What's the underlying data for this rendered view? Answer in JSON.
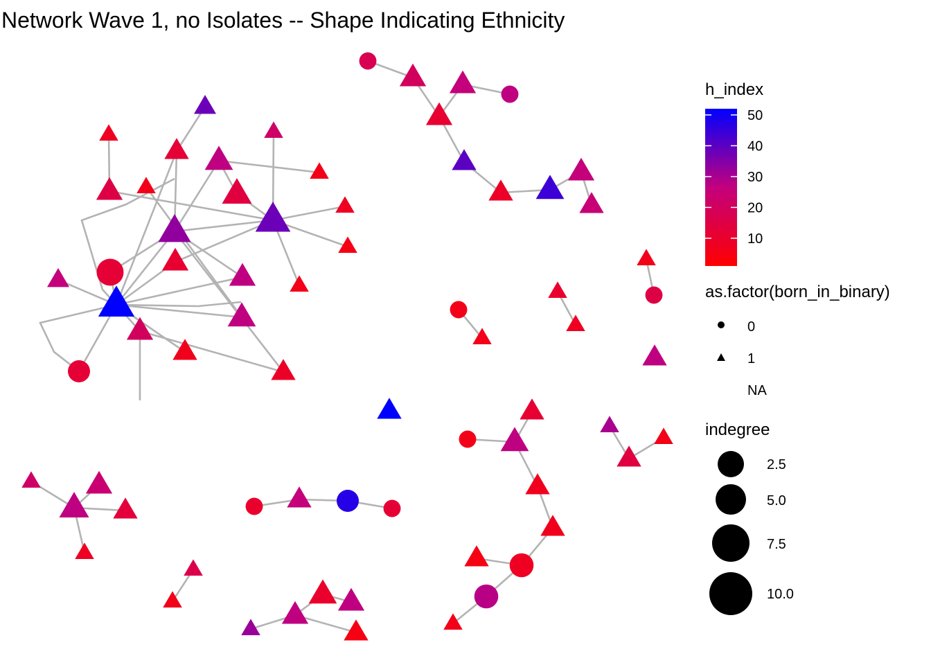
{
  "chart_data": {
    "type": "network",
    "title": "Network Wave 1, no Isolates -- Shape Indicating Ethnicity",
    "colors": {
      "low": "#ff0000",
      "high": "#0000ff",
      "edge": "#b3b3b3"
    },
    "legend": {
      "placement": "right",
      "color": {
        "title": "h_index",
        "min": 1,
        "max": 52,
        "ticks": [
          10,
          20,
          30,
          40,
          50
        ]
      },
      "shape": {
        "title": "as.factor(born_in_binary)",
        "entries": [
          {
            "label": "0",
            "shape": "circle"
          },
          {
            "label": "1",
            "shape": "triangle"
          },
          {
            "label": "NA",
            "shape": "none"
          }
        ]
      },
      "size": {
        "title": "indegree",
        "values": [
          2.5,
          5.0,
          7.5,
          10.0
        ],
        "labels": [
          "2.5",
          "5.0",
          "7.5",
          "10.0"
        ]
      }
    },
    "nodes": [
      {
        "id": "a1",
        "shape": "triangle",
        "h_index": 38,
        "indegree": 2
      },
      {
        "id": "a2",
        "shape": "triangle",
        "h_index": 8,
        "indegree": 1
      },
      {
        "id": "a3",
        "shape": "triangle",
        "h_index": 22,
        "indegree": 1
      },
      {
        "id": "a4",
        "shape": "triangle",
        "h_index": 12,
        "indegree": 3
      },
      {
        "id": "a5",
        "shape": "triangle",
        "h_index": 15,
        "indegree": 4
      },
      {
        "id": "a6",
        "shape": "triangle",
        "h_index": 6,
        "indegree": 1
      },
      {
        "id": "a7",
        "shape": "triangle",
        "h_index": 27,
        "indegree": 5
      },
      {
        "id": "a8",
        "shape": "triangle",
        "h_index": 14,
        "indegree": 6
      },
      {
        "id": "a9",
        "shape": "triangle",
        "h_index": 8,
        "indegree": 1
      },
      {
        "id": "a10",
        "shape": "triangle",
        "h_index": 5,
        "indegree": 1
      },
      {
        "id": "a11",
        "shape": "triangle",
        "h_index": 33,
        "indegree": 8
      },
      {
        "id": "a12",
        "shape": "triangle",
        "h_index": 38,
        "indegree": 10
      },
      {
        "id": "a13",
        "shape": "triangle",
        "h_index": 6,
        "indegree": 1
      },
      {
        "id": "b1",
        "shape": "circle",
        "h_index": 12,
        "indegree": 6
      },
      {
        "id": "b2",
        "shape": "triangle",
        "h_index": 26,
        "indegree": 2
      },
      {
        "id": "b3",
        "shape": "triangle",
        "h_index": 11,
        "indegree": 4
      },
      {
        "id": "b4",
        "shape": "triangle",
        "h_index": 27,
        "indegree": 4
      },
      {
        "id": "b5",
        "shape": "triangle",
        "h_index": 7,
        "indegree": 3
      },
      {
        "id": "b6",
        "shape": "triangle",
        "h_index": 52,
        "indegree": 11
      },
      {
        "id": "b7",
        "shape": "triangle",
        "h_index": 27,
        "indegree": 5
      },
      {
        "id": "b8",
        "shape": "triangle",
        "h_index": 20,
        "indegree": 4
      },
      {
        "id": "b9",
        "shape": "triangle",
        "h_index": 9,
        "indegree": 3
      },
      {
        "id": "b10",
        "shape": "circle",
        "h_index": 12,
        "indegree": 3
      },
      {
        "id": "b11",
        "shape": "triangle",
        "h_index": 6,
        "indegree": 1
      },
      {
        "id": "c1",
        "shape": "circle",
        "h_index": 18,
        "indegree": 1
      },
      {
        "id": "c2",
        "shape": "triangle",
        "h_index": 20,
        "indegree": 4
      },
      {
        "id": "c3",
        "shape": "triangle",
        "h_index": 26,
        "indegree": 4
      },
      {
        "id": "c4",
        "shape": "circle",
        "h_index": 27,
        "indegree": 1
      },
      {
        "id": "c5",
        "shape": "triangle",
        "h_index": 11,
        "indegree": 4
      },
      {
        "id": "c6",
        "shape": "triangle",
        "h_index": 40,
        "indegree": 3
      },
      {
        "id": "c7",
        "shape": "triangle",
        "h_index": 9,
        "indegree": 3
      },
      {
        "id": "c8",
        "shape": "triangle",
        "h_index": 44,
        "indegree": 5
      },
      {
        "id": "c9",
        "shape": "triangle",
        "h_index": 26,
        "indegree": 4
      },
      {
        "id": "c10",
        "shape": "triangle",
        "h_index": 25,
        "indegree": 3
      },
      {
        "id": "d1",
        "shape": "triangle",
        "h_index": 6,
        "indegree": 1
      },
      {
        "id": "d2",
        "shape": "circle",
        "h_index": 15,
        "indegree": 1
      },
      {
        "id": "e1",
        "shape": "triangle",
        "h_index": 10,
        "indegree": 1
      },
      {
        "id": "e2",
        "shape": "triangle",
        "h_index": 8,
        "indegree": 1
      },
      {
        "id": "f1",
        "shape": "circle",
        "h_index": 6,
        "indegree": 1
      },
      {
        "id": "f2",
        "shape": "triangle",
        "h_index": 6,
        "indegree": 1
      },
      {
        "id": "g1",
        "shape": "triangle",
        "h_index": 27,
        "indegree": 3
      },
      {
        "id": "h1",
        "shape": "triangle",
        "h_index": 52,
        "indegree": 3
      },
      {
        "id": "i1",
        "shape": "triangle",
        "h_index": 11,
        "indegree": 3
      },
      {
        "id": "i2",
        "shape": "circle",
        "h_index": 6,
        "indegree": 1
      },
      {
        "id": "i3",
        "shape": "triangle",
        "h_index": 27,
        "indegree": 5
      },
      {
        "id": "i4",
        "shape": "triangle",
        "h_index": 7,
        "indegree": 3
      },
      {
        "id": "i5",
        "shape": "triangle",
        "h_index": 7,
        "indegree": 3
      },
      {
        "id": "i6",
        "shape": "circle",
        "h_index": 8,
        "indegree": 4
      },
      {
        "id": "i7",
        "shape": "triangle",
        "h_index": 5,
        "indegree": 3
      },
      {
        "id": "i8",
        "shape": "circle",
        "h_index": 28,
        "indegree": 4
      },
      {
        "id": "i9",
        "shape": "triangle",
        "h_index": 6,
        "indegree": 1
      },
      {
        "id": "j1",
        "shape": "triangle",
        "h_index": 30,
        "indegree": 1
      },
      {
        "id": "j2",
        "shape": "triangle",
        "h_index": 6,
        "indegree": 1
      },
      {
        "id": "j3",
        "shape": "triangle",
        "h_index": 14,
        "indegree": 3
      },
      {
        "id": "k1",
        "shape": "triangle",
        "h_index": 22,
        "indegree": 1
      },
      {
        "id": "k2",
        "shape": "triangle",
        "h_index": 24,
        "indegree": 4
      },
      {
        "id": "k3",
        "shape": "triangle",
        "h_index": 27,
        "indegree": 6
      },
      {
        "id": "k4",
        "shape": "triangle",
        "h_index": 13,
        "indegree": 3
      },
      {
        "id": "k5",
        "shape": "triangle",
        "h_index": 8,
        "indegree": 1
      },
      {
        "id": "l1",
        "shape": "circle",
        "h_index": 10,
        "indegree": 1
      },
      {
        "id": "l2",
        "shape": "triangle",
        "h_index": 26,
        "indegree": 3
      },
      {
        "id": "l3",
        "shape": "circle",
        "h_index": 47,
        "indegree": 3
      },
      {
        "id": "l4",
        "shape": "circle",
        "h_index": 12,
        "indegree": 1
      },
      {
        "id": "m1",
        "shape": "triangle",
        "h_index": 16,
        "indegree": 1
      },
      {
        "id": "m2",
        "shape": "triangle",
        "h_index": 6,
        "indegree": 1
      },
      {
        "id": "n1",
        "shape": "triangle",
        "h_index": 32,
        "indegree": 1
      },
      {
        "id": "n2",
        "shape": "triangle",
        "h_index": 10,
        "indegree": 5
      },
      {
        "id": "n3",
        "shape": "triangle",
        "h_index": 27,
        "indegree": 4
      },
      {
        "id": "n4",
        "shape": "triangle",
        "h_index": 27,
        "indegree": 4
      },
      {
        "id": "n5",
        "shape": "triangle",
        "h_index": 5,
        "indegree": 3
      }
    ],
    "edges": [
      [
        "a2",
        "a5"
      ],
      [
        "a1",
        "a4"
      ],
      [
        "a4",
        "a11"
      ],
      [
        "a3",
        "a12"
      ],
      [
        "a5",
        "a12"
      ],
      [
        "a6",
        "a7"
      ],
      [
        "a7",
        "a11"
      ],
      [
        "a7",
        "a8"
      ],
      [
        "a8",
        "a12"
      ],
      [
        "a9",
        "a12"
      ],
      [
        "a10",
        "a12"
      ],
      [
        "a13",
        "a12"
      ],
      [
        "a12",
        "b3"
      ],
      [
        "a12",
        "a11"
      ],
      [
        "a11",
        "b1"
      ],
      [
        "a11",
        "b6"
      ],
      [
        "a11",
        "b9"
      ],
      [
        "a11",
        "b4"
      ],
      [
        "b1",
        "b6"
      ],
      [
        "b2",
        "b6"
      ],
      [
        "b6",
        "a4"
      ],
      [
        "b6",
        "b4"
      ],
      [
        "b6",
        "b7"
      ],
      [
        "b6",
        "b5"
      ],
      [
        "b6",
        "b8"
      ],
      [
        "b6",
        "b10"
      ],
      [
        "b8",
        "b9"
      ],
      [
        "b7",
        "b11"
      ],
      [
        "b3",
        "b6"
      ],
      [
        "c1",
        "c2"
      ],
      [
        "c2",
        "c5"
      ],
      [
        "c3",
        "c5"
      ],
      [
        "c3",
        "c4"
      ],
      [
        "c5",
        "c6"
      ],
      [
        "c6",
        "c7"
      ],
      [
        "c7",
        "c8"
      ],
      [
        "c8",
        "c9"
      ],
      [
        "c9",
        "c10"
      ],
      [
        "d1",
        "d2"
      ],
      [
        "e1",
        "e2"
      ],
      [
        "f1",
        "f2"
      ],
      [
        "i1",
        "i3"
      ],
      [
        "i2",
        "i3"
      ],
      [
        "i3",
        "i4"
      ],
      [
        "i4",
        "i5"
      ],
      [
        "i5",
        "i6"
      ],
      [
        "i6",
        "i7"
      ],
      [
        "i6",
        "i8"
      ],
      [
        "i8",
        "i9"
      ],
      [
        "j1",
        "j3"
      ],
      [
        "j2",
        "j3"
      ],
      [
        "k1",
        "k3"
      ],
      [
        "k2",
        "k3"
      ],
      [
        "k3",
        "k4"
      ],
      [
        "k3",
        "k5"
      ],
      [
        "l1",
        "l2"
      ],
      [
        "l2",
        "l3"
      ],
      [
        "l3",
        "l4"
      ],
      [
        "m1",
        "m2"
      ],
      [
        "n1",
        "n4"
      ],
      [
        "n2",
        "n3"
      ],
      [
        "n2",
        "n4"
      ],
      [
        "n4",
        "n5"
      ]
    ]
  }
}
